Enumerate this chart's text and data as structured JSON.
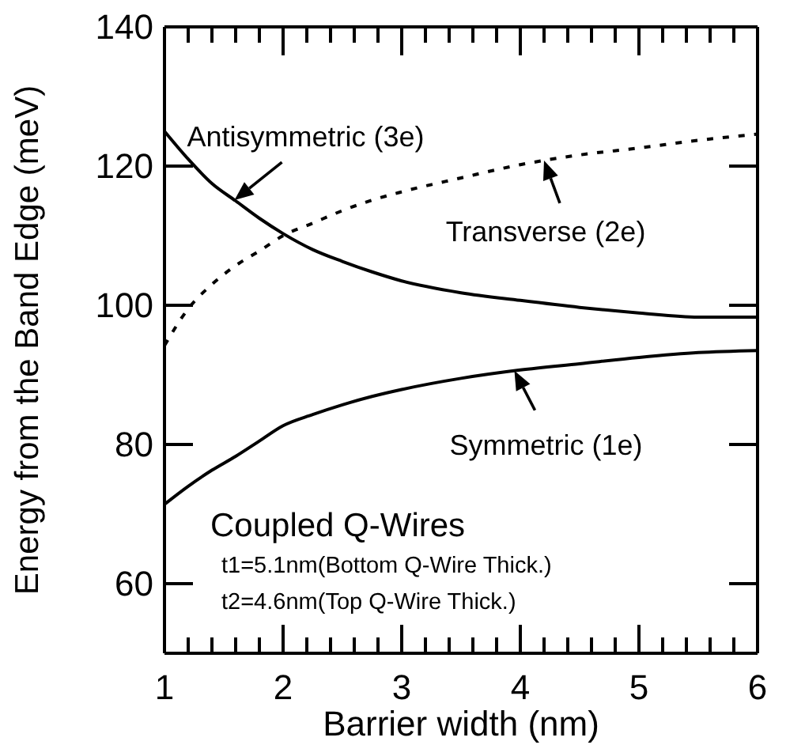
{
  "chart_data": {
    "type": "line",
    "xlabel": "Barrier width (nm)",
    "ylabel": "Energy from the Band Edge (meV)",
    "xlim": [
      1,
      6
    ],
    "ylim": [
      50,
      140
    ],
    "xticks": [
      1,
      {
        "value": 1.2,
        "label": null
      },
      {
        "value": 1.4,
        "label": null
      },
      {
        "value": 1.6,
        "label": null
      },
      {
        "value": 1.8,
        "label": null
      },
      2,
      {
        "value": 2.2,
        "label": null
      },
      {
        "value": 2.4,
        "label": null
      },
      {
        "value": 2.6,
        "label": null
      },
      {
        "value": 2.8,
        "label": null
      },
      3,
      {
        "value": 3.2,
        "label": null
      },
      {
        "value": 3.4,
        "label": null
      },
      {
        "value": 3.6,
        "label": null
      },
      {
        "value": 3.8,
        "label": null
      },
      4,
      {
        "value": 4.2,
        "label": null
      },
      {
        "value": 4.4,
        "label": null
      },
      {
        "value": 4.6,
        "label": null
      },
      {
        "value": 4.8,
        "label": null
      },
      5,
      {
        "value": 5.2,
        "label": null
      },
      {
        "value": 5.4,
        "label": null
      },
      {
        "value": 5.6,
        "label": null
      },
      {
        "value": 5.8,
        "label": null
      },
      6
    ],
    "yticks": [
      60,
      80,
      100,
      120,
      140
    ],
    "x": [
      1,
      1.2,
      1.4,
      1.6,
      1.8,
      2,
      2.25,
      2.5,
      2.75,
      3,
      3.5,
      4,
      4.5,
      5,
      5.5,
      6
    ],
    "series": [
      {
        "color": "#000000",
        "line_style": "solid",
        "values": [
          125,
          121,
          117.5,
          115,
          112.5,
          110.3,
          108,
          106.3,
          104.8,
          103.5,
          101.8,
          100.7,
          99.7,
          98.9,
          98.3,
          98.3
        ]
      },
      {
        "color": "#000000",
        "line_style": "dashed",
        "values": [
          94.2,
          99.5,
          103,
          105.7,
          107.8,
          110,
          111.8,
          113.6,
          115.1,
          116.3,
          118.3,
          120.2,
          121.6,
          122.6,
          123.7,
          124.6
        ]
      },
      {
        "color": "#000000",
        "line_style": "solid",
        "values": [
          71.4,
          74,
          76.3,
          78.3,
          80.5,
          82.7,
          84.3,
          85.7,
          86.9,
          87.9,
          89.5,
          90.7,
          91.6,
          92.5,
          93.2,
          93.5
        ]
      }
    ],
    "annotations": [
      {
        "text": "Antisymmetric (3e)",
        "x": 1.59,
        "y": 115.1
      },
      {
        "text": "Transverse (2e)",
        "x": 4.2,
        "y": 120.8
      },
      {
        "text": "Symmetric (1e)",
        "x": 3.95,
        "y": 90.6
      },
      "Coupled Q-Wires",
      "t1=5.1nm(Bottom Q-Wire Thick.)",
      "t2=4.6nm(Top Q-Wire Thick.)"
    ],
    "grid": false,
    "marker": "none"
  }
}
